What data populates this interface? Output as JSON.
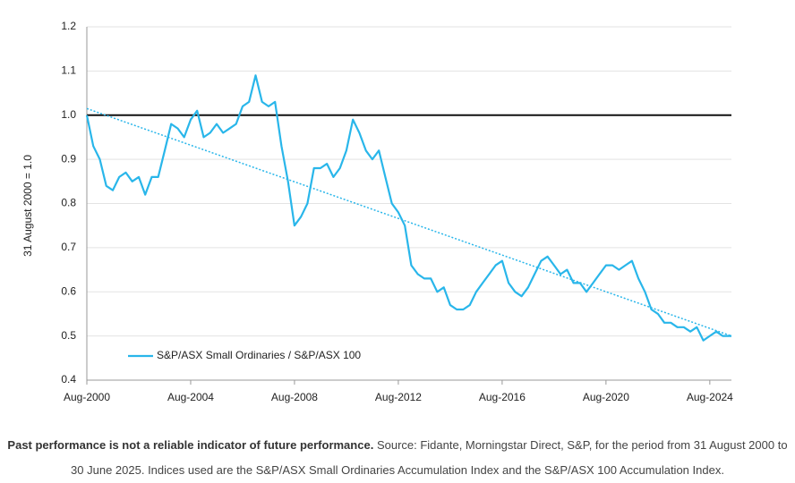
{
  "chart_data": {
    "type": "line",
    "ylabel": "31 August 2000 = 1.0",
    "x": [
      "Aug-2000",
      "Nov-2000",
      "Feb-2001",
      "May-2001",
      "Aug-2001",
      "Nov-2001",
      "Feb-2002",
      "May-2002",
      "Aug-2002",
      "Nov-2002",
      "Feb-2003",
      "May-2003",
      "Aug-2003",
      "Nov-2003",
      "Feb-2004",
      "May-2004",
      "Aug-2004",
      "Nov-2004",
      "Feb-2005",
      "May-2005",
      "Aug-2005",
      "Nov-2005",
      "Feb-2006",
      "May-2006",
      "Aug-2006",
      "Nov-2006",
      "Feb-2007",
      "May-2007",
      "Aug-2007",
      "Nov-2007",
      "Feb-2008",
      "May-2008",
      "Aug-2008",
      "Nov-2008",
      "Feb-2009",
      "May-2009",
      "Aug-2009",
      "Nov-2009",
      "Feb-2010",
      "May-2010",
      "Aug-2010",
      "Nov-2010",
      "Feb-2011",
      "May-2011",
      "Aug-2011",
      "Nov-2011",
      "Feb-2012",
      "May-2012",
      "Aug-2012",
      "Nov-2012",
      "Feb-2013",
      "May-2013",
      "Aug-2013",
      "Nov-2013",
      "Feb-2014",
      "May-2014",
      "Aug-2014",
      "Nov-2014",
      "Feb-2015",
      "May-2015",
      "Aug-2015",
      "Nov-2015",
      "Feb-2016",
      "May-2016",
      "Aug-2016",
      "Nov-2016",
      "Feb-2017",
      "May-2017",
      "Aug-2017",
      "Nov-2017",
      "Feb-2018",
      "May-2018",
      "Aug-2018",
      "Nov-2018",
      "Feb-2019",
      "May-2019",
      "Aug-2019",
      "Nov-2019",
      "Feb-2020",
      "May-2020",
      "Aug-2020",
      "Nov-2020",
      "Feb-2021",
      "May-2021",
      "Aug-2021",
      "Nov-2021",
      "Feb-2022",
      "May-2022",
      "Aug-2022",
      "Nov-2022",
      "Feb-2023",
      "May-2023",
      "Aug-2023",
      "Nov-2023",
      "Feb-2024",
      "May-2024",
      "Aug-2024",
      "Nov-2024",
      "Feb-2025",
      "Jun-2025"
    ],
    "series": [
      {
        "name": "S&P/ASX Small Ordinaries / S&P/ASX 100",
        "color": "#29b6ea",
        "values": [
          1.0,
          0.93,
          0.9,
          0.84,
          0.83,
          0.86,
          0.87,
          0.85,
          0.86,
          0.82,
          0.86,
          0.86,
          0.92,
          0.98,
          0.97,
          0.95,
          0.99,
          1.01,
          0.95,
          0.96,
          0.98,
          0.96,
          0.97,
          0.98,
          1.02,
          1.03,
          1.09,
          1.03,
          1.02,
          1.03,
          0.93,
          0.85,
          0.75,
          0.77,
          0.8,
          0.88,
          0.88,
          0.89,
          0.86,
          0.88,
          0.92,
          0.99,
          0.96,
          0.92,
          0.9,
          0.92,
          0.86,
          0.8,
          0.78,
          0.75,
          0.66,
          0.64,
          0.63,
          0.63,
          0.6,
          0.61,
          0.57,
          0.56,
          0.56,
          0.57,
          0.6,
          0.62,
          0.64,
          0.66,
          0.67,
          0.62,
          0.6,
          0.59,
          0.61,
          0.64,
          0.67,
          0.68,
          0.66,
          0.64,
          0.65,
          0.62,
          0.62,
          0.6,
          0.62,
          0.64,
          0.66,
          0.66,
          0.65,
          0.66,
          0.67,
          0.63,
          0.6,
          0.56,
          0.55,
          0.53,
          0.53,
          0.52,
          0.52,
          0.51,
          0.52,
          0.49,
          0.5,
          0.51,
          0.5,
          0.5
        ]
      }
    ],
    "trend": {
      "x": [
        "Aug-2000",
        "Jun-2025"
      ],
      "values": [
        1.015,
        0.5
      ],
      "color": "#29b6ea"
    },
    "hline": {
      "value": 1.0,
      "color": "#111"
    },
    "xlim": [
      "Aug-2000",
      "Jun-2025"
    ],
    "xticks": [
      "Aug-2000",
      "Aug-2004",
      "Aug-2008",
      "Aug-2012",
      "Aug-2016",
      "Aug-2020",
      "Aug-2024"
    ],
    "ylim": [
      0.4,
      1.2
    ],
    "yticks": [
      {
        "value": 0.4,
        "label": "0.4"
      },
      {
        "value": 0.5,
        "label": "0.5"
      },
      {
        "value": 0.6,
        "label": "0.6"
      },
      {
        "value": 0.7,
        "label": "0.7"
      },
      {
        "value": 0.8,
        "label": "0.8"
      },
      {
        "value": 0.9,
        "label": "0.9"
      },
      {
        "value": 1.0,
        "label": "1.0"
      },
      {
        "value": 1.1,
        "label": "1.1"
      },
      {
        "value": 1.2,
        "label": "1.2"
      }
    ],
    "grid": true,
    "legend": "lower left"
  },
  "footnote": {
    "bold": "Past performance is not a reliable indicator of future performance.",
    "text": "Source: Fidante, Morningstar Direct, S&P, for the period from 31 August 2000 to 30 June 2025. Indices used are the S&P/ASX Small Ordinaries Accumulation Index and the S&P/ASX 100 Accumulation Index."
  }
}
